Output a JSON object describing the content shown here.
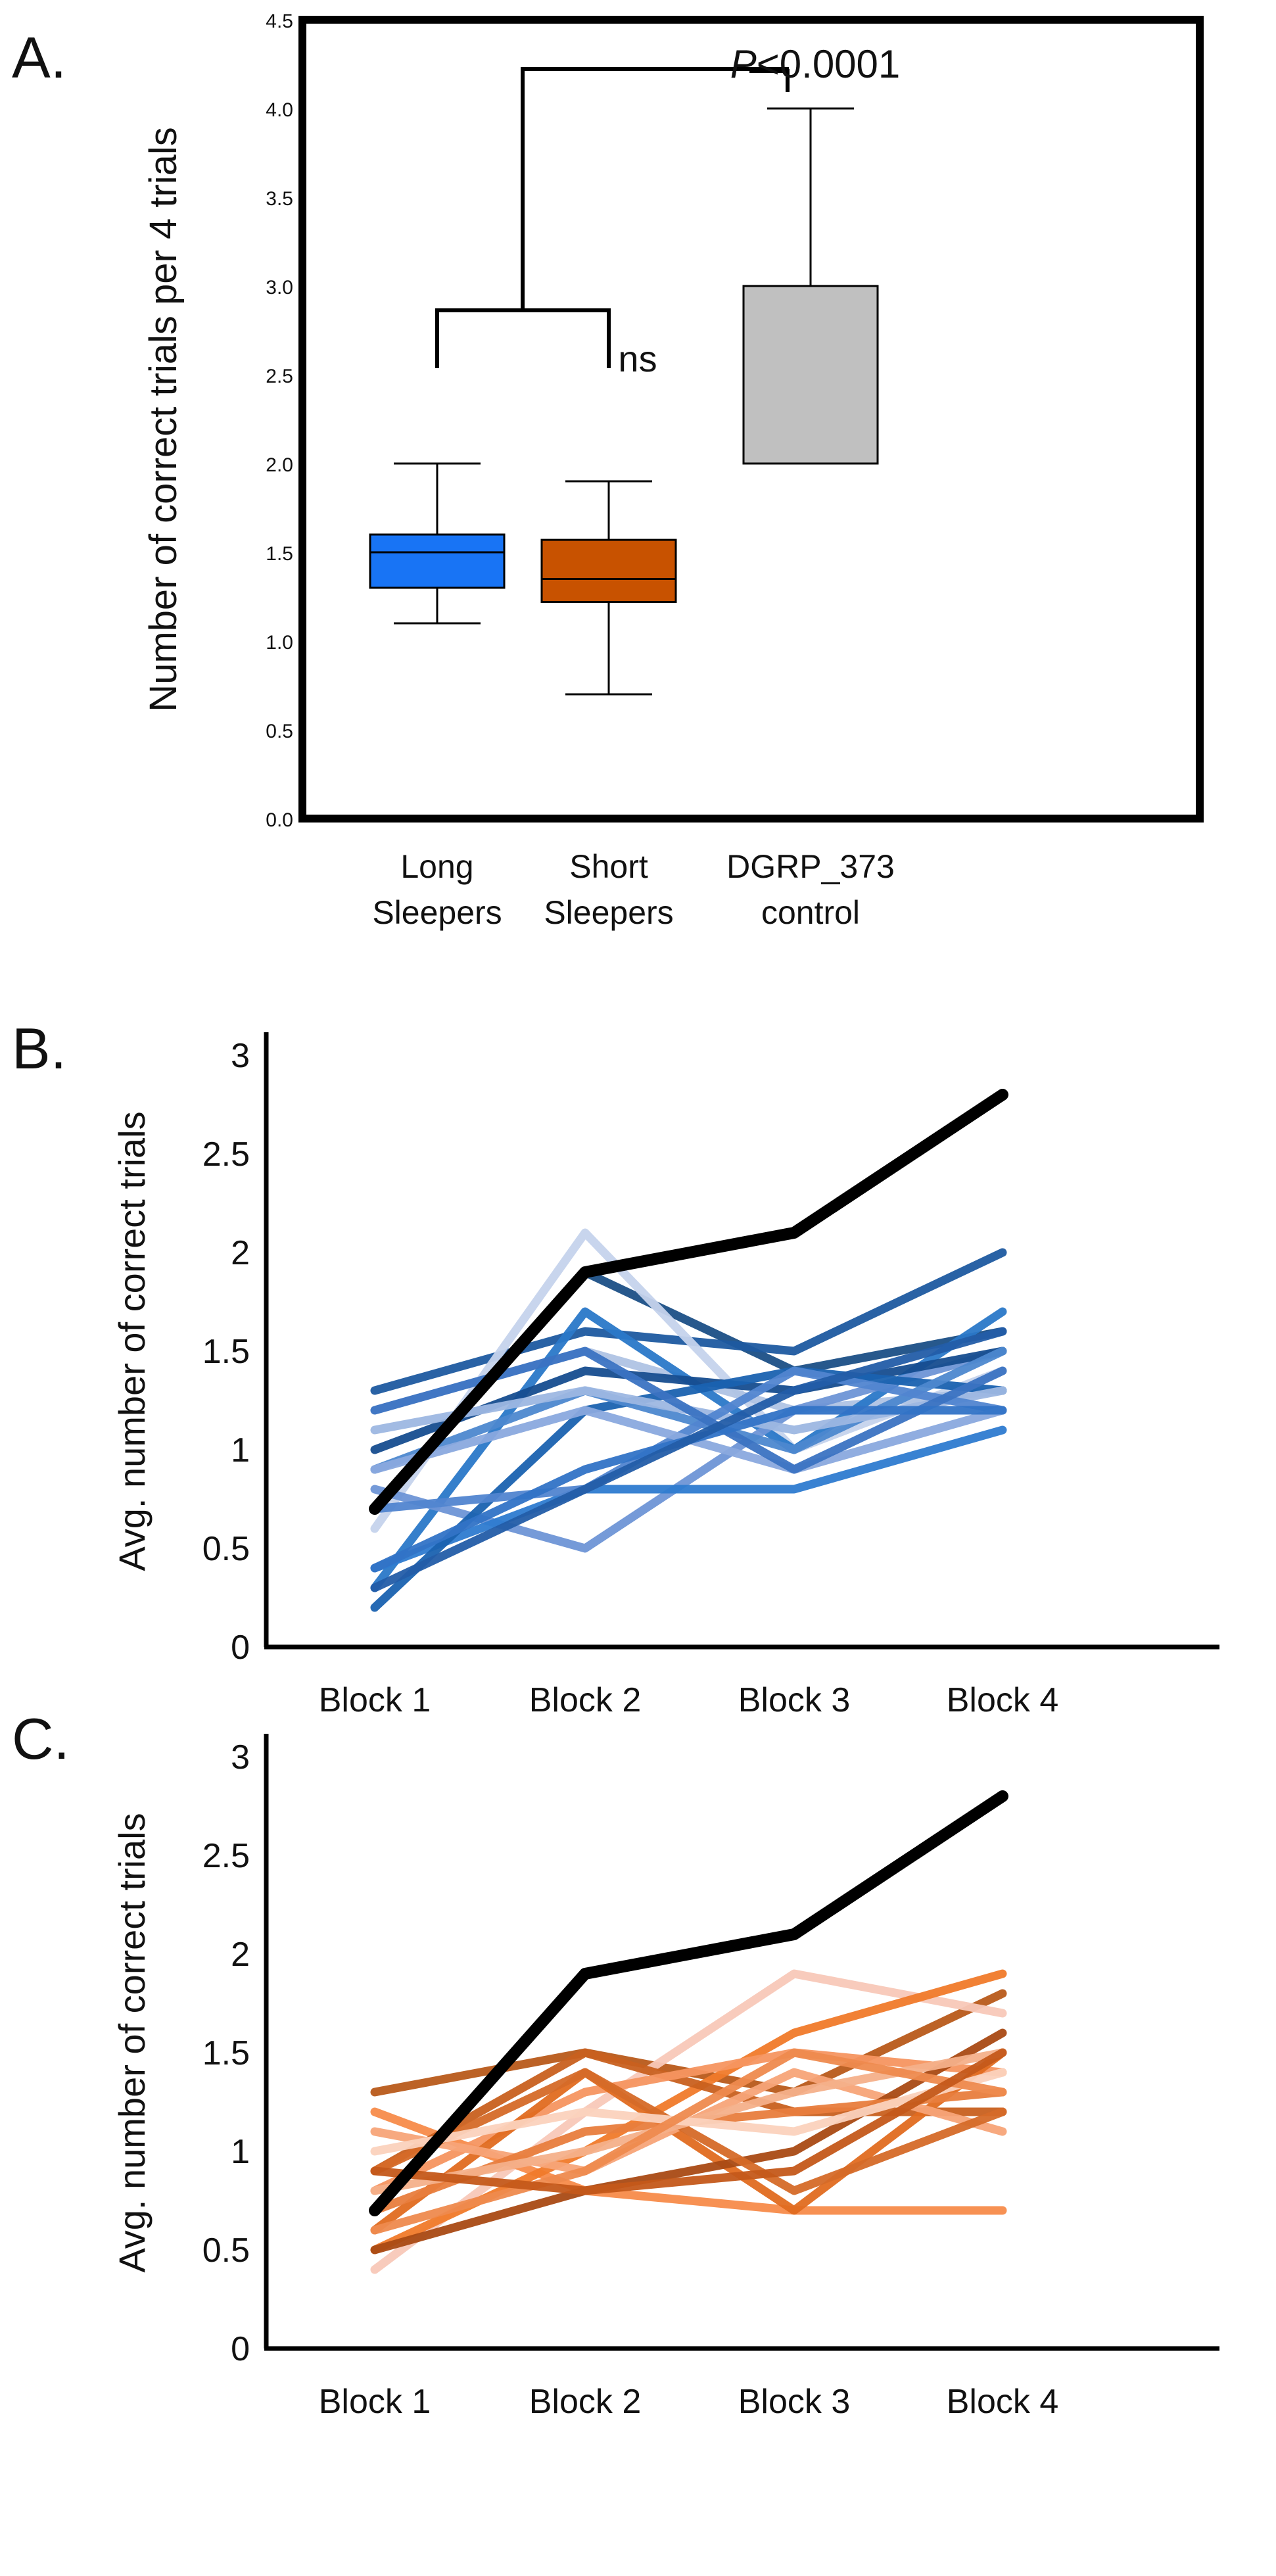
{
  "panels": {
    "A": {
      "letter": "A."
    },
    "B": {
      "letter": "B."
    },
    "C": {
      "letter": "C."
    }
  },
  "colors": {
    "long_box": "#1874f5",
    "short_box": "#c85200",
    "control_box": "#c0c0c0",
    "control_line": "#000000"
  },
  "chart_data": [
    {
      "id": "A",
      "type": "box",
      "title": "",
      "ylabel": "Number of correct trials per 4 trials",
      "ylim": [
        0,
        4.5
      ],
      "yticks": [
        "0.0",
        "0.5",
        "1.0",
        "1.5",
        "2.0",
        "2.5",
        "3.0",
        "3.5",
        "4.0",
        "4.5"
      ],
      "categories": [
        {
          "line1": "Long",
          "line2": "Sleepers"
        },
        {
          "line1": "Short",
          "line2": "Sleepers"
        },
        {
          "line1": "DGRP_373",
          "line2": "control"
        }
      ],
      "boxes": [
        {
          "name": "Long Sleepers",
          "min": 1.1,
          "q1": 1.3,
          "median": 1.5,
          "q3": 1.6,
          "max": 2.0,
          "color": "#1874f5"
        },
        {
          "name": "Short Sleepers",
          "min": 0.7,
          "q1": 1.22,
          "median": 1.35,
          "q3": 1.57,
          "max": 1.9,
          "color": "#c85200"
        },
        {
          "name": "DGRP_373 control",
          "min": 2.0,
          "q1": 2.0,
          "median": 2.0,
          "q3": 3.0,
          "max": 4.0,
          "color": "#c0c0c0"
        }
      ],
      "annotations": {
        "ns": "ns",
        "p_italic": "P",
        "p_value": "<0.0001"
      }
    },
    {
      "id": "B",
      "type": "line",
      "ylabel": "Avg. number of correct trials",
      "ylim": [
        0,
        3
      ],
      "yticks": [
        "0",
        "0.5",
        "1",
        "1.5",
        "2",
        "2.5",
        "3"
      ],
      "categories": [
        "Block 1",
        "Block 2",
        "Block 3",
        "Block 4"
      ],
      "control": {
        "name": "DGRP_373 control",
        "values": [
          0.7,
          1.9,
          2.1,
          2.8
        ],
        "color": "#000000"
      },
      "series": [
        {
          "values": [
            0.7,
            1.9,
            1.4,
            1.6
          ],
          "color": "#1b4f86"
        },
        {
          "values": [
            1.3,
            1.6,
            1.5,
            2.0
          ],
          "color": "#1e5aa0"
        },
        {
          "values": [
            0.6,
            2.1,
            1.0,
            1.4
          ],
          "color": "#c5d3ec"
        },
        {
          "values": [
            1.2,
            1.5,
            1.2,
            1.3
          ],
          "color": "#afc3e4"
        },
        {
          "values": [
            0.3,
            1.7,
            1.0,
            1.7
          ],
          "color": "#2a78c8"
        },
        {
          "values": [
            0.8,
            0.5,
            1.2,
            1.5
          ],
          "color": "#6e95d6"
        },
        {
          "values": [
            1.0,
            1.4,
            1.3,
            1.5
          ],
          "color": "#164d8f"
        },
        {
          "values": [
            0.4,
            0.8,
            0.8,
            1.1
          ],
          "color": "#2e7bd0"
        },
        {
          "values": [
            0.2,
            1.2,
            1.4,
            1.3
          ],
          "color": "#1a62b0"
        },
        {
          "values": [
            0.9,
            1.3,
            1.0,
            1.5
          ],
          "color": "#4d88cf"
        },
        {
          "values": [
            1.1,
            1.3,
            1.1,
            1.3
          ],
          "color": "#9db7e2"
        },
        {
          "values": [
            0.7,
            0.8,
            1.4,
            1.2
          ],
          "color": "#5185d0"
        },
        {
          "values": [
            0.9,
            1.2,
            0.9,
            1.2
          ],
          "color": "#8aa9de"
        },
        {
          "values": [
            1.2,
            1.5,
            0.9,
            1.4
          ],
          "color": "#3b73c2"
        },
        {
          "values": [
            0.4,
            0.9,
            1.2,
            1.2
          ],
          "color": "#3173c6"
        },
        {
          "values": [
            0.3,
            0.8,
            1.3,
            1.6
          ],
          "color": "#235da8"
        }
      ]
    },
    {
      "id": "C",
      "type": "line",
      "ylabel": "Avg. number of correct trials",
      "ylim": [
        0,
        3
      ],
      "yticks": [
        "0",
        "0.5",
        "1",
        "1.5",
        "2",
        "2.5",
        "3"
      ],
      "categories": [
        "Block 1",
        "Block 2",
        "Block 3",
        "Block 4"
      ],
      "control": {
        "name": "DGRP_373 control",
        "values": [
          0.7,
          1.9,
          2.1,
          2.8
        ],
        "color": "#000000"
      },
      "series": [
        {
          "values": [
            1.3,
            1.5,
            1.3,
            1.8
          ],
          "color": "#b85a1a"
        },
        {
          "values": [
            0.4,
            1.2,
            1.9,
            1.7
          ],
          "color": "#f8c8b8"
        },
        {
          "values": [
            1.2,
            0.8,
            0.7,
            0.7
          ],
          "color": "#f78b4a"
        },
        {
          "values": [
            0.5,
            1.0,
            1.6,
            1.9
          ],
          "color": "#f07a2a"
        },
        {
          "values": [
            0.9,
            1.5,
            1.2,
            1.2
          ],
          "color": "#c8601f"
        },
        {
          "values": [
            0.8,
            1.3,
            1.5,
            1.4
          ],
          "color": "#f59560"
        },
        {
          "values": [
            0.6,
            1.4,
            0.7,
            1.5
          ],
          "color": "#e06c20"
        },
        {
          "values": [
            1.1,
            0.9,
            1.4,
            1.1
          ],
          "color": "#f7a478"
        },
        {
          "values": [
            0.5,
            0.8,
            1.0,
            1.6
          ],
          "color": "#a94a14"
        },
        {
          "values": [
            0.7,
            1.1,
            1.2,
            1.3
          ],
          "color": "#e87d3d"
        },
        {
          "values": [
            0.9,
            1.4,
            0.8,
            1.2
          ],
          "color": "#d56a28"
        },
        {
          "values": [
            0.8,
            1.0,
            1.3,
            1.5
          ],
          "color": "#f4b08a"
        },
        {
          "values": [
            1.0,
            1.2,
            1.1,
            1.4
          ],
          "color": "#fbd2bd"
        },
        {
          "values": [
            0.6,
            0.9,
            1.5,
            1.3
          ],
          "color": "#ee8a4e"
        },
        {
          "values": [
            0.9,
            0.8,
            0.9,
            1.5
          ],
          "color": "#c4581a"
        }
      ]
    }
  ]
}
